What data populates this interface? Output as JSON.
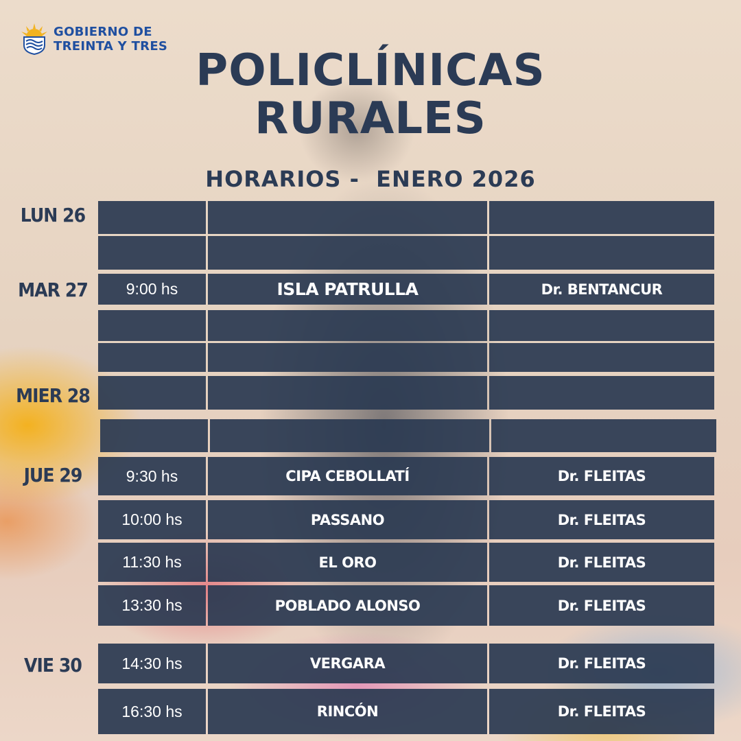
{
  "brand": {
    "line1": "GOBIERNO DE",
    "line2": "TREINTA Y TRES"
  },
  "title": {
    "line1": "POLICLÍNICAS",
    "line2": "RURALES"
  },
  "subtitle": "HORARIOS -  ENERO 2026",
  "days": {
    "lun": "LUN 26",
    "mar": "MAR 27",
    "mier": "MIER 28",
    "jue": "JUE 29",
    "vie": "VIE 30"
  },
  "rows": [
    {
      "time": "",
      "place": "",
      "doctor": ""
    },
    {
      "time": "",
      "place": "",
      "doctor": ""
    },
    {
      "time": "9:00 hs",
      "place": "ISLA PATRULLA",
      "doctor": "Dr. BENTANCUR"
    },
    {
      "time": "",
      "place": "",
      "doctor": ""
    },
    {
      "time": "",
      "place": "",
      "doctor": ""
    },
    {
      "time": "",
      "place": "",
      "doctor": ""
    },
    {
      "time": "",
      "place": "",
      "doctor": ""
    },
    {
      "time": "9:30 hs",
      "place": "CIPA CEBOLLATÍ",
      "doctor": "Dr. FLEITAS"
    },
    {
      "time": "10:00 hs",
      "place": "PASSANO",
      "doctor": "Dr. FLEITAS"
    },
    {
      "time": "11:30 hs",
      "place": "EL ORO",
      "doctor": "Dr. FLEITAS"
    },
    {
      "time": "13:30 hs",
      "place": "POBLADO ALONSO",
      "doctor": "Dr. FLEITAS"
    },
    {
      "time": "14:30 hs",
      "place": "VERGARA",
      "doctor": "Dr. FLEITAS"
    },
    {
      "time": "16:30 hs",
      "place": "RINCÓN",
      "doctor": "Dr. FLEITAS"
    }
  ],
  "colors": {
    "navy": "#2b3b55",
    "cell": "#2b3a52",
    "brand_blue": "#1f4fa0",
    "sun": "#f2b320"
  },
  "icons": {
    "logo": "sun-shield-emblem-icon"
  }
}
